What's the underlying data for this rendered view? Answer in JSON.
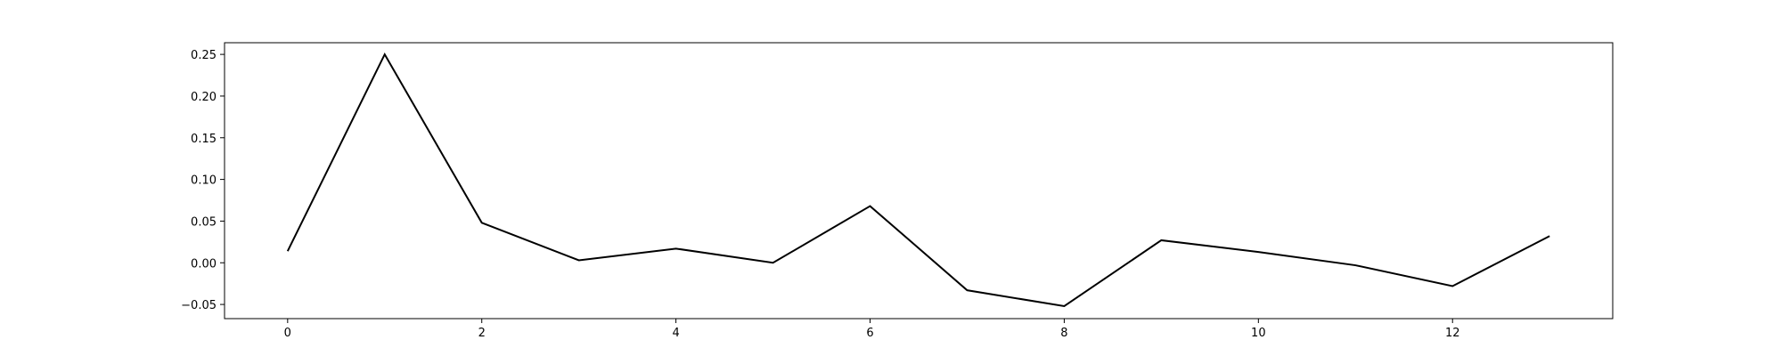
{
  "chart_data": {
    "type": "line",
    "title": "",
    "xlabel": "",
    "ylabel": "",
    "x": [
      0,
      1,
      2,
      3,
      4,
      5,
      6,
      7,
      8,
      9,
      10,
      11,
      12,
      13
    ],
    "series": [
      {
        "values": [
          0.014,
          0.25,
          0.048,
          0.003,
          0.017,
          0.0,
          0.068,
          -0.033,
          -0.052,
          0.027,
          0.013,
          -0.003,
          -0.028,
          0.032
        ],
        "color": "#000000"
      }
    ],
    "xlim": [
      -0.65,
      13.65
    ],
    "ylim": [
      -0.067,
      0.264
    ],
    "xticks": [
      0,
      2,
      4,
      6,
      8,
      10,
      12
    ],
    "xtick_labels": [
      "0",
      "2",
      "4",
      "6",
      "8",
      "10",
      "12"
    ],
    "yticks": [
      -0.05,
      0.0,
      0.05,
      0.1,
      0.15,
      0.2,
      0.25
    ],
    "ytick_labels": [
      "−0.05",
      "0.00",
      "0.05",
      "0.10",
      "0.15",
      "0.20",
      "0.25"
    ],
    "grid": false,
    "legend": "none"
  }
}
